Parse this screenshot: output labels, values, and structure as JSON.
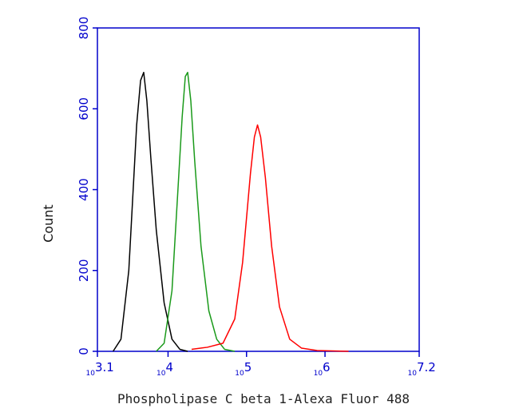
{
  "chart_data": {
    "type": "line",
    "xlabel": "Phospholipase C beta 1-Alexa Fluor 488",
    "ylabel": "Count",
    "xscale": "log",
    "xlim": [
      1258.9254,
      15848931.92
    ],
    "xticks": [
      {
        "value": 1258.9254,
        "label": "10",
        "exponent": "3.1"
      },
      {
        "value": 10000,
        "label": "10",
        "exponent": "4"
      },
      {
        "value": 100000,
        "label": "10",
        "exponent": "5"
      },
      {
        "value": 1000000,
        "label": "10",
        "exponent": "6"
      },
      {
        "value": 15848931.92,
        "label": "10",
        "exponent": "7.2"
      }
    ],
    "ylim": [
      0,
      800
    ],
    "yticks": [
      0,
      200,
      400,
      600,
      800
    ],
    "axis_color": "#0000cc",
    "series": [
      {
        "color": "#000000",
        "x": [
          1995,
          2512,
          3162,
          3548,
          3981,
          4467,
          4898,
          5370,
          6026,
          7079,
          8913,
          11220,
          14125,
          17783
        ],
        "values": [
          0,
          30,
          200,
          380,
          560,
          670,
          690,
          620,
          480,
          300,
          120,
          30,
          5,
          0
        ]
      },
      {
        "color": "#1a9a1a",
        "x": [
          7079,
          8913,
          11220,
          13183,
          15136,
          16596,
          17783,
          19498,
          21878,
          26303,
          33113,
          41687,
          52481,
          70795
        ],
        "values": [
          0,
          20,
          150,
          380,
          580,
          680,
          690,
          620,
          470,
          260,
          100,
          30,
          5,
          0
        ]
      },
      {
        "color": "#ff0000",
        "x": [
          19953,
          31623,
          50119,
          70795,
          89125,
          112202,
          125893,
          138038,
          151356,
          173780,
          208930,
          263027,
          354813,
          501187,
          794328,
          1995262
        ],
        "values": [
          5,
          10,
          20,
          80,
          220,
          440,
          530,
          560,
          530,
          430,
          260,
          110,
          30,
          8,
          2,
          0
        ]
      }
    ]
  }
}
